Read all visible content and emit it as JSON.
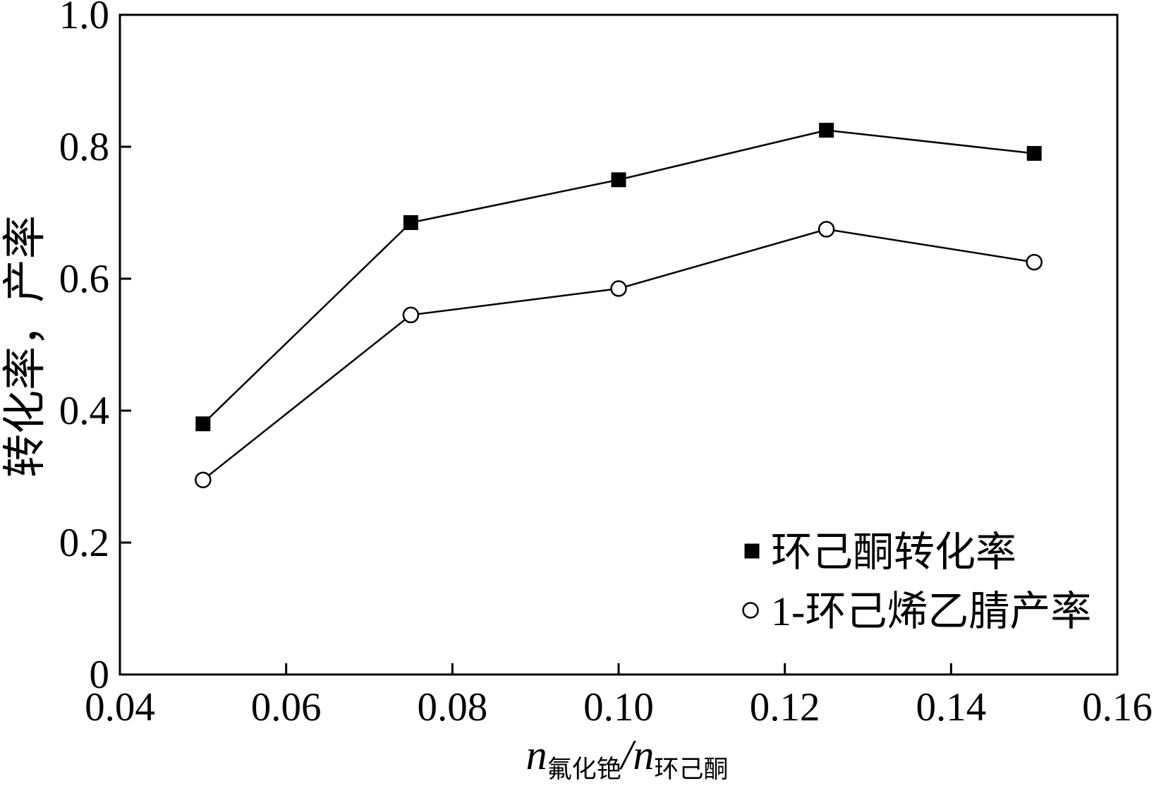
{
  "chart_data": {
    "type": "line",
    "xlabel": {
      "var1": "n",
      "sub1": "氟化铯",
      "sep": "/",
      "var2": "n",
      "sub2": "环己酮"
    },
    "ylabel": "转化率，产率",
    "xlim": [
      0.04,
      0.16
    ],
    "ylim": [
      0,
      1.0
    ],
    "xticks": [
      {
        "value": 0.04,
        "label": "0.04"
      },
      {
        "value": 0.06,
        "label": "0.06"
      },
      {
        "value": 0.08,
        "label": "0.08"
      },
      {
        "value": 0.1,
        "label": "0.10"
      },
      {
        "value": 0.12,
        "label": "0.12"
      },
      {
        "value": 0.14,
        "label": "0.14"
      },
      {
        "value": 0.16,
        "label": "0.16"
      }
    ],
    "yticks": [
      {
        "value": 0,
        "label": "0"
      },
      {
        "value": 0.2,
        "label": "0.2"
      },
      {
        "value": 0.4,
        "label": "0.4"
      },
      {
        "value": 0.6,
        "label": "0.6"
      },
      {
        "value": 0.8,
        "label": "0.8"
      },
      {
        "value": 1.0,
        "label": "1.0"
      }
    ],
    "x": [
      0.05,
      0.075,
      0.1,
      0.125,
      0.15
    ],
    "series": [
      {
        "name": "环己酮转化率",
        "marker": "filled-square",
        "values": [
          0.38,
          0.685,
          0.75,
          0.825,
          0.79
        ]
      },
      {
        "name": "1-环己烯乙腈产率",
        "marker": "open-circle",
        "values": [
          0.295,
          0.545,
          0.585,
          0.675,
          0.625
        ]
      }
    ],
    "grid": false,
    "legend_position": "bottom-right",
    "colors": {
      "line": "#000000",
      "marker_fill_open": "#ffffff",
      "background": "#ffffff"
    }
  }
}
